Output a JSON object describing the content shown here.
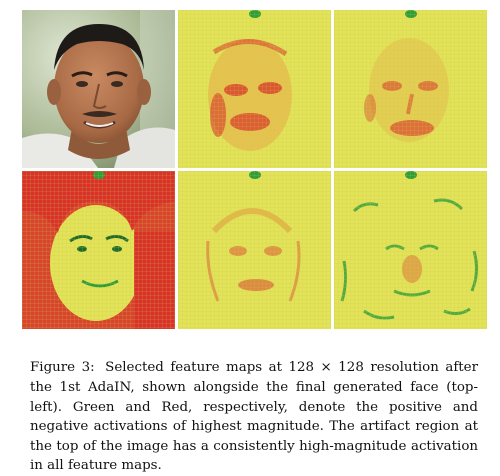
{
  "figure": {
    "panels": [
      {
        "id": "generated-face",
        "kind": "photo"
      },
      {
        "id": "feature-map-1",
        "kind": "feature-map"
      },
      {
        "id": "feature-map-2",
        "kind": "feature-map"
      },
      {
        "id": "feature-map-3",
        "kind": "feature-map"
      },
      {
        "id": "feature-map-4",
        "kind": "feature-map"
      },
      {
        "id": "feature-map-5",
        "kind": "feature-map"
      }
    ],
    "colors": {
      "positive": "#2e9e3a",
      "negative": "#d8322a",
      "neutral": "#e3e35a"
    }
  },
  "caption": {
    "label": "Figure 3:",
    "text": "Selected feature maps at 128 × 128 resolution after the 1st AdaIN, shown alongside the final generated face (top-left). Green and Red, respectively, denote the positive and negative activations of highest magnitude. The artifact region at the top of the image has a consistently high-magnitude activation in all feature maps."
  }
}
